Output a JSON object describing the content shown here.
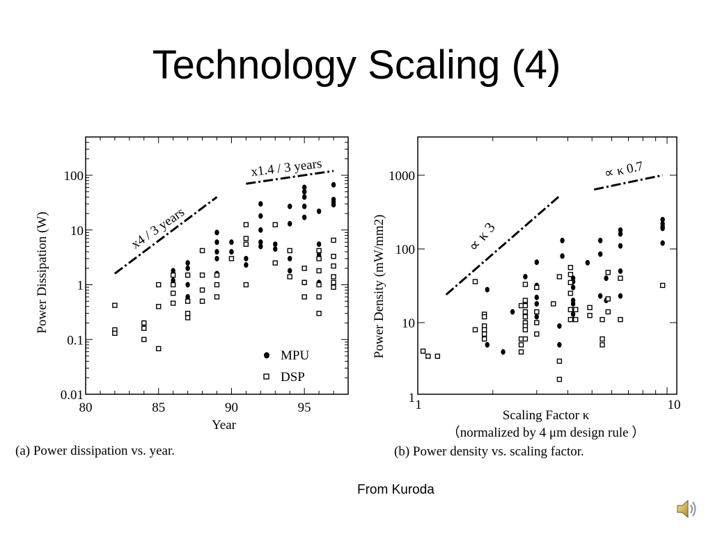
{
  "slide": {
    "title": "Technology Scaling (4)",
    "credit": "From Kuroda",
    "audio_icon": "speaker-icon"
  },
  "chart_data": [
    {
      "type": "scatter",
      "panel_caption": "(a) Power dissipation vs. year.",
      "xlabel": "Year",
      "ylabel": "Power Dissipation  (W)",
      "xlim": [
        80,
        98
      ],
      "ylim": [
        0.01,
        500
      ],
      "yscale": "log",
      "xticks": [
        "80",
        "85",
        "90",
        "95"
      ],
      "yticks": [
        "0.01",
        "0.1",
        "1",
        "10",
        "100"
      ],
      "legend": {
        "placement": "bottom-right",
        "entries": [
          "MPU",
          "DSP"
        ]
      },
      "annotations": [
        "x4 / 3 years",
        "x1.4 / 3 years"
      ],
      "trend_lines": [
        {
          "label": "x4 / 3 years",
          "points": [
            [
              82,
              1.6
            ],
            [
              89,
              40
            ]
          ]
        },
        {
          "label": "x1.4 / 3 years",
          "points": [
            [
              91,
              70
            ],
            [
              97,
              120
            ]
          ]
        }
      ],
      "series": [
        {
          "name": "MPU",
          "marker": "filled-circle",
          "points": [
            [
              84,
              0.2
            ],
            [
              86,
              1.8
            ],
            [
              86,
              1.2
            ],
            [
              87,
              2.5
            ],
            [
              87,
              2.0
            ],
            [
              87,
              1.5
            ],
            [
              87,
              1.0
            ],
            [
              87,
              0.6
            ],
            [
              89,
              9
            ],
            [
              89,
              6
            ],
            [
              89,
              4
            ],
            [
              89,
              3
            ],
            [
              89,
              1.6
            ],
            [
              90,
              6
            ],
            [
              90,
              4
            ],
            [
              91,
              3
            ],
            [
              91,
              2.3
            ],
            [
              92,
              30
            ],
            [
              92,
              18
            ],
            [
              92,
              10
            ],
            [
              92,
              6
            ],
            [
              92,
              5
            ],
            [
              93,
              5.5
            ],
            [
              93,
              4.5
            ],
            [
              94,
              27
            ],
            [
              94,
              13
            ],
            [
              94,
              3
            ],
            [
              94,
              1.8
            ],
            [
              95,
              60
            ],
            [
              95,
              50
            ],
            [
              95,
              40
            ],
            [
              95,
              27
            ],
            [
              95,
              17
            ],
            [
              95,
              1.1
            ],
            [
              96,
              22
            ],
            [
              96,
              5.5
            ],
            [
              96,
              3.5
            ],
            [
              96,
              1.1
            ],
            [
              97,
              67
            ],
            [
              97,
              36
            ],
            [
              97,
              32
            ],
            [
              97,
              29
            ]
          ]
        },
        {
          "name": "DSP",
          "marker": "open-square",
          "points": [
            [
              82,
              0.42
            ],
            [
              82,
              0.15
            ],
            [
              82,
              0.13
            ],
            [
              84,
              0.2
            ],
            [
              84,
              0.16
            ],
            [
              84,
              0.1
            ],
            [
              85,
              1.0
            ],
            [
              85,
              0.4
            ],
            [
              85,
              0.068
            ],
            [
              86,
              1.5
            ],
            [
              86,
              1.0
            ],
            [
              86,
              0.7
            ],
            [
              86,
              0.46
            ],
            [
              87,
              1.5
            ],
            [
              87,
              0.5
            ],
            [
              87,
              0.3
            ],
            [
              87,
              0.25
            ],
            [
              88,
              4.2
            ],
            [
              88,
              1.5
            ],
            [
              88,
              0.8
            ],
            [
              88,
              0.5
            ],
            [
              89,
              1.5
            ],
            [
              89,
              1.0
            ],
            [
              89,
              0.6
            ],
            [
              90,
              3
            ],
            [
              91,
              12.5
            ],
            [
              91,
              7
            ],
            [
              91,
              5.5
            ],
            [
              91,
              1.0
            ],
            [
              93,
              12.5
            ],
            [
              93,
              2.5
            ],
            [
              94,
              4.2
            ],
            [
              94,
              1.4
            ],
            [
              95,
              2.0
            ],
            [
              95,
              1.1
            ],
            [
              95,
              0.6
            ],
            [
              96,
              4.2
            ],
            [
              96,
              3
            ],
            [
              96,
              1.8
            ],
            [
              96,
              1.0
            ],
            [
              96,
              0.6
            ],
            [
              96,
              0.3
            ],
            [
              97,
              6.5
            ],
            [
              97,
              3.3
            ],
            [
              97,
              2.2
            ],
            [
              97,
              1.4
            ],
            [
              97,
              1.1
            ],
            [
              97,
              0.9
            ]
          ]
        }
      ]
    },
    {
      "type": "scatter",
      "panel_caption": "(b) Power density vs. scaling factor.",
      "xlabel": "Scaling Factor  κ",
      "xlabel_note": "（normalized by 4  μm design rule  ）",
      "ylabel": "Power Density (mW/mm2)",
      "xlim": [
        1,
        10
      ],
      "ylim": [
        1,
        3000
      ],
      "xscale": "log",
      "yscale": "log",
      "xticks": [
        "1",
        "10"
      ],
      "yticks": [
        "1",
        "10",
        "100",
        "1000"
      ],
      "annotations": [
        "∝ κ 3",
        "∝ κ 0.7"
      ],
      "trend_lines": [
        {
          "label": "∝ κ 3",
          "points": [
            [
              1.3,
              24
            ],
            [
              3.7,
              520
            ]
          ]
        },
        {
          "label": "∝ κ 0.7",
          "points": [
            [
              5.1,
              640
            ],
            [
              9.6,
              1000
            ]
          ]
        }
      ],
      "series": [
        {
          "name": "MPU",
          "marker": "filled-circle",
          "points": [
            [
              1.9,
              28
            ],
            [
              1.9,
              5
            ],
            [
              2.2,
              4
            ],
            [
              2.4,
              14
            ],
            [
              2.7,
              42
            ],
            [
              2.7,
              18
            ],
            [
              2.7,
              12
            ],
            [
              3.0,
              66
            ],
            [
              3.0,
              32
            ],
            [
              3.0,
              22
            ],
            [
              3.0,
              18
            ],
            [
              3.0,
              12
            ],
            [
              3.7,
              9
            ],
            [
              3.7,
              5
            ],
            [
              3.8,
              130
            ],
            [
              3.8,
              80
            ],
            [
              4.2,
              40
            ],
            [
              4.2,
              36
            ],
            [
              4.2,
              30
            ],
            [
              4.2,
              20
            ],
            [
              4.2,
              18
            ],
            [
              4.2,
              15
            ],
            [
              4.2,
              13
            ],
            [
              4.8,
              65
            ],
            [
              5.4,
              130
            ],
            [
              5.4,
              85
            ],
            [
              5.4,
              23
            ],
            [
              5.7,
              40
            ],
            [
              5.7,
              20
            ],
            [
              6.5,
              180
            ],
            [
              6.5,
              160
            ],
            [
              6.5,
              110
            ],
            [
              6.5,
              50
            ],
            [
              6.5,
              23
            ],
            [
              9.6,
              250
            ],
            [
              9.6,
              220
            ],
            [
              9.6,
              200
            ],
            [
              9.6,
              190
            ],
            [
              9.6,
              120
            ]
          ]
        },
        {
          "name": "DSP",
          "marker": "open-square",
          "points": [
            [
              1.05,
              4.1
            ],
            [
              1.1,
              3.5
            ],
            [
              1.2,
              3.5
            ],
            [
              1.7,
              36
            ],
            [
              1.7,
              8
            ],
            [
              1.85,
              13
            ],
            [
              1.85,
              12
            ],
            [
              1.85,
              9
            ],
            [
              1.85,
              8
            ],
            [
              1.85,
              7
            ],
            [
              1.85,
              6
            ],
            [
              2.6,
              17
            ],
            [
              2.6,
              6
            ],
            [
              2.6,
              5
            ],
            [
              2.6,
              4
            ],
            [
              2.7,
              33
            ],
            [
              2.7,
              20
            ],
            [
              2.7,
              17
            ],
            [
              2.7,
              14
            ],
            [
              2.7,
              12
            ],
            [
              2.7,
              10
            ],
            [
              2.7,
              9
            ],
            [
              2.7,
              8
            ],
            [
              2.7,
              6
            ],
            [
              3.0,
              30
            ],
            [
              3.0,
              14
            ],
            [
              3.0,
              10
            ],
            [
              3.0,
              7
            ],
            [
              3.5,
              18
            ],
            [
              3.7,
              42
            ],
            [
              3.7,
              3
            ],
            [
              3.7,
              1.7
            ],
            [
              4.1,
              56
            ],
            [
              4.1,
              45
            ],
            [
              4.1,
              35
            ],
            [
              4.1,
              25
            ],
            [
              4.1,
              15
            ],
            [
              4.1,
              11
            ],
            [
              4.3,
              15
            ],
            [
              4.3,
              11
            ],
            [
              4.9,
              16
            ],
            [
              4.9,
              12.5
            ],
            [
              5.5,
              11
            ],
            [
              5.5,
              6
            ],
            [
              5.5,
              5
            ],
            [
              5.8,
              48
            ],
            [
              5.8,
              21
            ],
            [
              5.8,
              14
            ],
            [
              6.5,
              40
            ],
            [
              6.5,
              11
            ],
            [
              9.6,
              32
            ]
          ]
        }
      ]
    }
  ]
}
